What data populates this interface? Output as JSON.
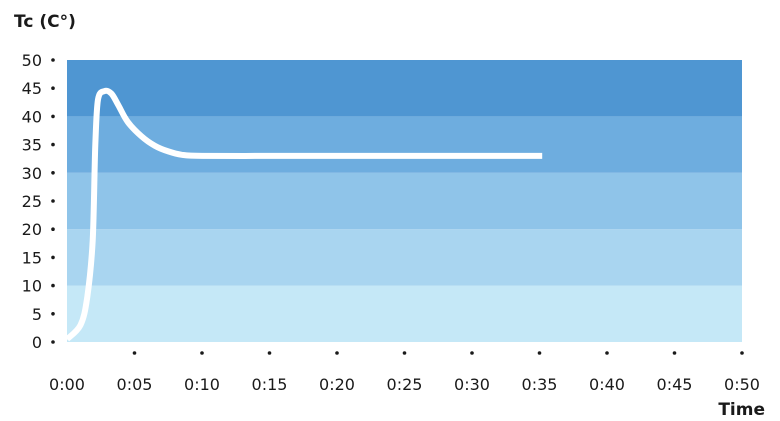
{
  "chart_data": {
    "type": "line",
    "ylabel": "Tc (C°)",
    "xlabel": "Time",
    "x_ticks": [
      "0:00",
      "0:05",
      "0:10",
      "0:15",
      "0:20",
      "0:25",
      "0:30",
      "0:35",
      "0:40",
      "0:45",
      "0:50"
    ],
    "y_ticks": [
      "0",
      "5",
      "10",
      "15",
      "20",
      "25",
      "30",
      "35",
      "40",
      "45",
      "50"
    ],
    "xlim": [
      0,
      50
    ],
    "ylim": [
      0,
      50
    ],
    "grid": false,
    "band_colors": [
      "#c5e8f7",
      "#a9d5f0",
      "#8fc4e9",
      "#6eaddf",
      "#4f96d2"
    ],
    "line_color": "#ffffff",
    "series": [
      {
        "x": [
          0.0,
          1.0,
          1.5,
          1.9,
          2.1,
          2.3,
          2.8,
          3.3,
          3.8,
          4.5,
          5.5,
          6.5,
          7.5,
          8.5,
          10.0,
          15.0,
          20.0,
          25.0,
          30.0,
          35.2
        ],
        "y": [
          0.5,
          3.0,
          8.0,
          18.0,
          35.0,
          43.0,
          44.5,
          44.0,
          42.0,
          39.0,
          36.5,
          34.8,
          33.8,
          33.2,
          33.0,
          33.0,
          33.0,
          33.0,
          33.0,
          33.0
        ]
      }
    ]
  }
}
